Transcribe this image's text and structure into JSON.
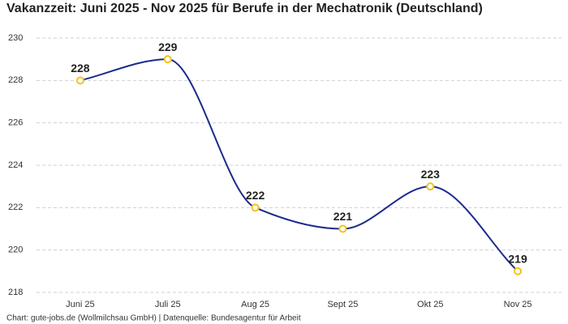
{
  "chart_data": {
    "type": "line",
    "title": "Vakanzzeit: Juni 2025 - Nov 2025 für Berufe in der Mechatronik (Deutschland)",
    "categories": [
      "Juni 25",
      "Juli 25",
      "Aug 25",
      "Sept 25",
      "Okt 25",
      "Nov 25"
    ],
    "values": [
      228,
      229,
      222,
      221,
      223,
      219
    ],
    "color": "#1b2a8c",
    "marker_color": "#f2c31b",
    "ylim": [
      218,
      230
    ],
    "yticks": [
      218,
      220,
      222,
      224,
      226,
      228,
      230
    ],
    "grid": true,
    "caption": "Chart: gute-jobs.de (Wollmilchsau GmbH) | Datenquelle: Bundesagentur für Arbeit"
  }
}
